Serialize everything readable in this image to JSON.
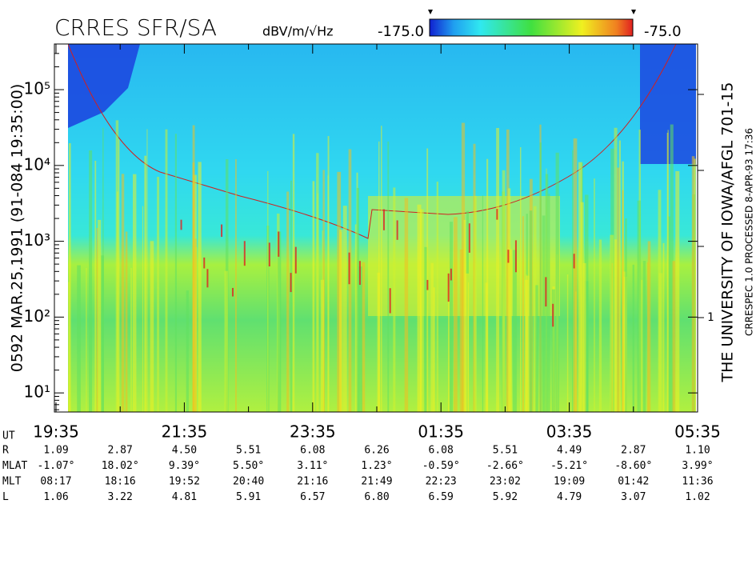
{
  "chart_data": {
    "type": "spectrogram",
    "title": "CRRES SFR/SA",
    "colorbar": {
      "label": "dBV/m/√Hz",
      "clim": [
        {
          "value": -175,
          "label": "-175.0"
        },
        {
          "value": -75,
          "label": "-75.0"
        }
      ]
    },
    "left_text": "0592  MAR.25,1991  (91-084 19:35:00)",
    "right_text": "THE UNIVERSITY OF IOWA/AFGL 701-15",
    "right_text2": "CRRESPEC 1.0   PROCESSED  8-APR-93  17:36",
    "ylim": [
      5.6,
      400000
    ],
    "log_y": true,
    "yticks": [
      {
        "value": 10,
        "label": "10¹"
      },
      {
        "value": 100,
        "label": "10²"
      },
      {
        "value": 1000,
        "label": "10³"
      },
      {
        "value": 10000,
        "label": "10⁴"
      },
      {
        "value": 100000,
        "label": "10⁵"
      }
    ],
    "y2_label": "1",
    "x_title": "UT",
    "x_labels": [
      "19:35",
      "21:35",
      "23:35",
      "01:35",
      "03:35",
      "05:35"
    ],
    "ephemeris": [
      {
        "label": "R",
        "values": [
          "1.09",
          "2.87",
          "4.50",
          "5.51",
          "6.08",
          "6.26",
          "6.08",
          "5.51",
          "4.49",
          "2.87",
          "1.10"
        ]
      },
      {
        "label": "MLAT",
        "values": [
          "-1.07°",
          "18.02°",
          "9.39°",
          "5.50°",
          "3.11°",
          "1.23°",
          "-0.59°",
          "-2.66°",
          "-5.21°",
          "-8.60°",
          "3.99°"
        ]
      },
      {
        "label": "MLT",
        "values": [
          "08:17",
          "18:16",
          "19:52",
          "20:40",
          "21:16",
          "21:49",
          "22:23",
          "23:02",
          "19:09",
          "01:42",
          "11:36"
        ]
      },
      {
        "label": "L",
        "values": [
          "1.06",
          "3.22",
          "4.81",
          "5.91",
          "6.57",
          "6.80",
          "6.59",
          "5.92",
          "4.79",
          "3.07",
          "1.02"
        ]
      }
    ]
  }
}
